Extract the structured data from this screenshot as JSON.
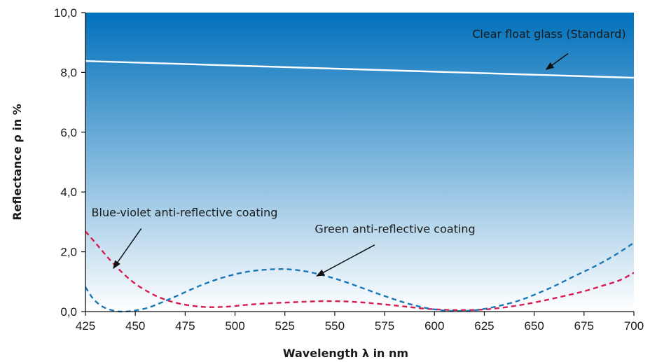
{
  "chart_data": {
    "type": "line",
    "xlabel": "Wavelength λ in nm",
    "ylabel": "Reflectance ρ in %",
    "xlim": [
      425,
      700
    ],
    "ylim": [
      0,
      10
    ],
    "x_ticks": [
      425,
      450,
      475,
      500,
      525,
      550,
      575,
      600,
      625,
      650,
      675,
      700
    ],
    "x_tick_labels": [
      "425",
      "450",
      "475",
      "500",
      "525",
      "550",
      "575",
      "600",
      "625",
      "650",
      "675",
      "700"
    ],
    "y_ticks": [
      0,
      2,
      4,
      6,
      8,
      10
    ],
    "y_tick_labels": [
      "0,0",
      "2,0",
      "4,0",
      "6,0",
      "8,0",
      "10,0"
    ],
    "background": {
      "top_color": "#0070bb",
      "bottom_color": "#ffffff"
    },
    "series": [
      {
        "name": "Clear float glass (Standard)",
        "style": "solid",
        "color": "#ffffff",
        "x": [
          425,
          700
        ],
        "y": [
          8.38,
          7.82
        ]
      },
      {
        "name": "Blue-violet anti-reflective coating",
        "style": "dashed",
        "color": "#d81b50",
        "x": [
          425,
          430,
          437,
          444,
          450,
          457,
          463,
          470,
          478,
          486,
          495,
          505,
          515,
          525,
          535,
          545,
          555,
          565,
          575,
          585,
          595,
          605,
          615,
          625,
          635,
          645,
          655,
          665,
          675,
          685,
          693,
          700
        ],
        "y": [
          2.68,
          2.3,
          1.75,
          1.27,
          0.93,
          0.64,
          0.45,
          0.3,
          0.2,
          0.15,
          0.16,
          0.22,
          0.27,
          0.3,
          0.33,
          0.35,
          0.34,
          0.3,
          0.24,
          0.17,
          0.1,
          0.06,
          0.05,
          0.07,
          0.14,
          0.24,
          0.37,
          0.52,
          0.68,
          0.88,
          1.05,
          1.3
        ]
      },
      {
        "name": "Green anti-reflective coating",
        "style": "dashed",
        "color": "#1a78b8",
        "x": [
          425,
          429,
          434,
          440,
          445,
          450,
          456,
          463,
          470,
          478,
          486,
          495,
          505,
          515,
          525,
          535,
          545,
          555,
          565,
          575,
          585,
          595,
          603,
          610,
          618,
          625,
          633,
          642,
          650,
          660,
          670,
          680,
          690,
          700
        ],
        "y": [
          0.82,
          0.42,
          0.15,
          0.02,
          0.0,
          0.04,
          0.12,
          0.3,
          0.5,
          0.74,
          0.96,
          1.16,
          1.32,
          1.4,
          1.42,
          1.35,
          1.2,
          1.0,
          0.76,
          0.52,
          0.3,
          0.13,
          0.05,
          0.02,
          0.03,
          0.09,
          0.2,
          0.36,
          0.56,
          0.85,
          1.18,
          1.5,
          1.87,
          2.3
        ]
      }
    ],
    "annotations": [
      {
        "text": "Clear float glass (Standard)",
        "text_anchor": "end",
        "tx": 696,
        "ty": 9.16,
        "ax1": 667,
        "ay1": 8.63,
        "ax2": 656,
        "ay2": 8.1
      },
      {
        "text": "Blue-violet anti-reflective coating",
        "text_anchor": "start",
        "tx": 428,
        "ty": 3.18,
        "ax1": 453,
        "ay1": 2.78,
        "ax2": 439,
        "ay2": 1.45
      },
      {
        "text": "Green anti-reflective coating",
        "text_anchor": "start",
        "tx": 540,
        "ty": 2.63,
        "ax1": 570,
        "ay1": 2.23,
        "ax2": 541,
        "ay2": 1.19
      }
    ]
  }
}
